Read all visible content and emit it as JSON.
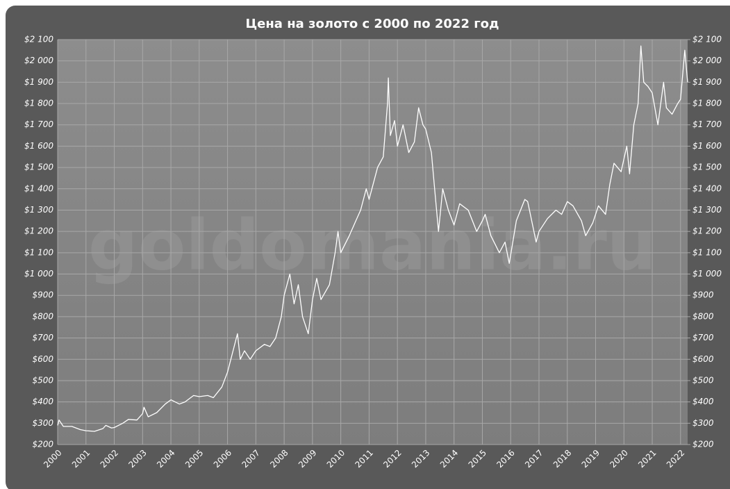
{
  "chart_data": {
    "type": "line",
    "title": "Цена на золото с 2000 по 2022  год",
    "watermark": "goldomania.ru",
    "x": [
      2000.0,
      2000.05,
      2000.2,
      2000.5,
      2000.8,
      2001.0,
      2001.3,
      2001.6,
      2001.7,
      2001.9,
      2002.0,
      2002.3,
      2002.5,
      2002.8,
      2003.0,
      2003.05,
      2003.2,
      2003.5,
      2003.8,
      2004.0,
      2004.3,
      2004.5,
      2004.8,
      2005.0,
      2005.3,
      2005.5,
      2005.8,
      2006.0,
      2006.35,
      2006.45,
      2006.6,
      2006.8,
      2007.0,
      2007.3,
      2007.5,
      2007.7,
      2007.9,
      2008.0,
      2008.2,
      2008.35,
      2008.5,
      2008.65,
      2008.85,
      2009.0,
      2009.15,
      2009.3,
      2009.6,
      2009.8,
      2009.9,
      2010.0,
      2010.3,
      2010.5,
      2010.7,
      2010.9,
      2011.0,
      2011.3,
      2011.5,
      2011.65,
      2011.68,
      2011.75,
      2011.9,
      2012.0,
      2012.2,
      2012.4,
      2012.6,
      2012.75,
      2012.9,
      2013.0,
      2013.2,
      2013.3,
      2013.45,
      2013.6,
      2013.8,
      2014.0,
      2014.2,
      2014.5,
      2014.8,
      2015.0,
      2015.1,
      2015.3,
      2015.6,
      2015.8,
      2015.95,
      2016.2,
      2016.5,
      2016.6,
      2016.9,
      2017.0,
      2017.3,
      2017.6,
      2017.8,
      2018.0,
      2018.2,
      2018.5,
      2018.65,
      2018.9,
      2019.1,
      2019.35,
      2019.5,
      2019.65,
      2019.9,
      2020.1,
      2020.2,
      2020.35,
      2020.5,
      2020.6,
      2020.7,
      2020.85,
      2021.0,
      2021.2,
      2021.4,
      2021.5,
      2021.7,
      2021.9,
      2022.0,
      2022.15,
      2022.25
    ],
    "series": [
      {
        "color": "#ffffff",
        "values": [
          290,
          315,
          285,
          285,
          270,
          265,
          262,
          275,
          290,
          278,
          280,
          300,
          318,
          315,
          345,
          375,
          330,
          350,
          390,
          410,
          390,
          400,
          430,
          425,
          430,
          420,
          470,
          540,
          720,
          600,
          640,
          600,
          640,
          670,
          660,
          700,
          800,
          900,
          1000,
          860,
          950,
          800,
          720,
          880,
          980,
          880,
          950,
          1100,
          1200,
          1100,
          1180,
          1240,
          1300,
          1400,
          1350,
          1500,
          1550,
          1800,
          1920,
          1650,
          1720,
          1600,
          1700,
          1570,
          1620,
          1780,
          1700,
          1680,
          1570,
          1420,
          1200,
          1400,
          1300,
          1230,
          1330,
          1300,
          1200,
          1250,
          1280,
          1180,
          1100,
          1150,
          1050,
          1250,
          1350,
          1340,
          1150,
          1200,
          1260,
          1300,
          1280,
          1340,
          1320,
          1250,
          1180,
          1240,
          1320,
          1280,
          1420,
          1520,
          1480,
          1600,
          1470,
          1700,
          1800,
          2070,
          1900,
          1880,
          1850,
          1700,
          1900,
          1780,
          1750,
          1800,
          1820,
          2050,
          1900
        ]
      }
    ],
    "xlim": [
      2000,
      2022.25
    ],
    "xticks": [
      2000,
      2001,
      2002,
      2003,
      2004,
      2005,
      2006,
      2007,
      2008,
      2009,
      2010,
      2011,
      2012,
      2013,
      2014,
      2015,
      2016,
      2017,
      2018,
      2019,
      2020,
      2021,
      2022
    ],
    "ylim": [
      200,
      2100
    ],
    "yticks": [
      {
        "value": 200,
        "label": "$200"
      },
      {
        "value": 300,
        "label": "$300"
      },
      {
        "value": 400,
        "label": "$400"
      },
      {
        "value": 500,
        "label": "$500"
      },
      {
        "value": 600,
        "label": "$600"
      },
      {
        "value": 700,
        "label": "$700"
      },
      {
        "value": 800,
        "label": "$800"
      },
      {
        "value": 900,
        "label": "$900"
      },
      {
        "value": 1000,
        "label": "$1 000"
      },
      {
        "value": 1100,
        "label": "$1 100"
      },
      {
        "value": 1200,
        "label": "$1 200"
      },
      {
        "value": 1300,
        "label": "$1 300"
      },
      {
        "value": 1400,
        "label": "$1 400"
      },
      {
        "value": 1500,
        "label": "$1 500"
      },
      {
        "value": 1600,
        "label": "$1 600"
      },
      {
        "value": 1700,
        "label": "$1 700"
      },
      {
        "value": 1800,
        "label": "$1 800"
      },
      {
        "value": 1900,
        "label": "$1 900"
      },
      {
        "value": 2000,
        "label": "$2 000"
      },
      {
        "value": 2100,
        "label": "$2 100"
      }
    ],
    "y2lim": [
      200,
      2100
    ],
    "y2ticks": [
      {
        "value": 200,
        "label": "$200"
      },
      {
        "value": 300,
        "label": "$300"
      },
      {
        "value": 400,
        "label": "$400"
      },
      {
        "value": 500,
        "label": "$500"
      },
      {
        "value": 600,
        "label": "$600"
      },
      {
        "value": 700,
        "label": "$700"
      },
      {
        "value": 800,
        "label": "$800"
      },
      {
        "value": 900,
        "label": "$900"
      },
      {
        "value": 1000,
        "label": "$1 000"
      },
      {
        "value": 1100,
        "label": "$1 100"
      },
      {
        "value": 1200,
        "label": "$1 200"
      },
      {
        "value": 1300,
        "label": "$1 300"
      },
      {
        "value": 1400,
        "label": "$1 400"
      },
      {
        "value": 1500,
        "label": "$1 500"
      },
      {
        "value": 1600,
        "label": "$1 600"
      },
      {
        "value": 1700,
        "label": "$1 700"
      },
      {
        "value": 1800,
        "label": "$1 800"
      },
      {
        "value": 1900,
        "label": "$1 900"
      },
      {
        "value": 2000,
        "label": "$2 000"
      },
      {
        "value": 2100,
        "label": "$2 100"
      }
    ],
    "grid": true
  }
}
